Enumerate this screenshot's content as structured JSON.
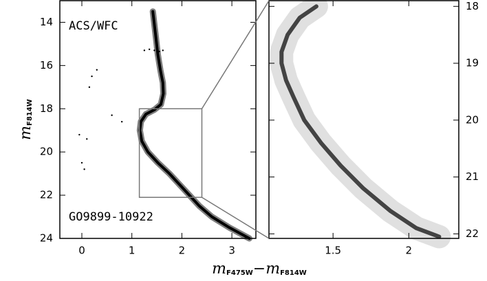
{
  "chart_data": [
    {
      "type": "line",
      "annotations": [
        "ACS/WFC",
        "GO9899-10922"
      ],
      "ylabel": {
        "text": "m",
        "subscript": "F814W"
      },
      "xlabel": {
        "text": "m",
        "subscript": "F475W",
        "text2": "−m",
        "subscript2": "F814W"
      },
      "xlim": [
        -0.44,
        3.48
      ],
      "ylim": [
        24,
        13.0
      ],
      "xticks": [
        0,
        1,
        2,
        3
      ],
      "yticks": [
        14,
        16,
        18,
        20,
        22,
        24
      ],
      "zoom_box": {
        "xlim": [
          1.15,
          2.4
        ],
        "ylim": [
          18,
          22.1
        ]
      },
      "series": [
        {
          "color": "#000000",
          "mode": "line",
          "x": [
            3.35,
            2.95,
            2.6,
            2.35,
            2.15,
            1.95,
            1.75,
            1.52,
            1.32,
            1.2,
            1.16,
            1.18,
            1.28,
            1.45,
            1.58,
            1.63,
            1.62,
            1.57,
            1.52,
            1.47,
            1.42
          ],
          "values": [
            24,
            23.5,
            23,
            22.5,
            22,
            21.5,
            21,
            20.5,
            20,
            19.5,
            19,
            18.6,
            18.25,
            18.05,
            17.8,
            17.3,
            16.8,
            16.2,
            15.5,
            14.5,
            13.5
          ]
        },
        {
          "color": "#000000",
          "mode": "points",
          "x": [
            1.25,
            1.35,
            1.45,
            1.55,
            1.62,
            0.0,
            0.05,
            -0.05,
            0.1,
            0.15,
            0.2,
            0.3,
            0.6,
            0.8
          ],
          "values": [
            15.3,
            15.25,
            15.3,
            15.35,
            15.3,
            20.5,
            20.8,
            19.2,
            19.4,
            17.0,
            16.5,
            16.2,
            18.3,
            18.6
          ]
        }
      ]
    },
    {
      "type": "line",
      "xlim": [
        1.077,
        2.33
      ],
      "ylim": [
        22.08,
        17.9
      ],
      "xticks": [
        1.5,
        2
      ],
      "yticks": [
        18,
        19,
        20,
        21,
        22
      ],
      "series": [
        {
          "color": "#000000",
          "mode": "line",
          "x": [
            1.39,
            1.28,
            1.2,
            1.16,
            1.16,
            1.19,
            1.24,
            1.31,
            1.42,
            1.55,
            1.7,
            1.88,
            2.05,
            2.2
          ],
          "values": [
            18.0,
            18.2,
            18.5,
            18.8,
            19.0,
            19.3,
            19.6,
            20.0,
            20.4,
            20.8,
            21.2,
            21.6,
            21.9,
            22.05
          ]
        }
      ]
    }
  ]
}
